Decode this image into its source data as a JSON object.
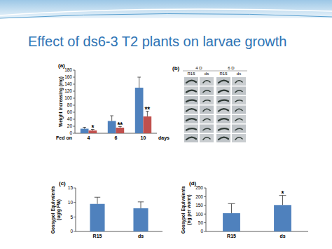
{
  "title": "Effect of ds6-3 T2 plants on larvae growth",
  "panel_b": {
    "label": "(b)",
    "days": [
      "4 D",
      "6 D"
    ],
    "lines": [
      "R15",
      "ds",
      "R15",
      "ds"
    ]
  },
  "chart_data": [
    {
      "type": "bar",
      "panel": "(a)",
      "y_label": "Weight increasing (mg)",
      "x_label_start": "Fed on",
      "x_label_end": "days",
      "categories": [
        "4",
        "6",
        "10"
      ],
      "ylim": [
        0,
        180
      ],
      "yticks": [
        0,
        20,
        40,
        60,
        80,
        100,
        120,
        140,
        160,
        180
      ],
      "series": [
        {
          "color": "#4f81bd",
          "values": [
            13,
            35,
            130
          ],
          "errors": [
            4,
            15,
            30
          ]
        },
        {
          "color": "#c0504d",
          "values": [
            8,
            16,
            48
          ],
          "errors": [
            3,
            3,
            15
          ],
          "annotations": [
            "*",
            "**",
            "**"
          ]
        }
      ]
    },
    {
      "type": "bar",
      "panel": "(c)",
      "y_label": [
        "Gossypol Equivalents",
        "(ug/g FW)"
      ],
      "categories": [
        "R15",
        "ds"
      ],
      "ylim": [
        0,
        15
      ],
      "yticks": [
        0,
        5,
        10,
        15
      ],
      "series": [
        {
          "color": "#4f81bd",
          "values": [
            9.5,
            8
          ],
          "errors": [
            2.3,
            2.2
          ]
        }
      ]
    },
    {
      "type": "bar",
      "panel": "(d)",
      "y_label": [
        "Gossypol Equivalents",
        "(ng per worm)"
      ],
      "categories": [
        "R15",
        "ds"
      ],
      "ylim": [
        0,
        250
      ],
      "yticks": [
        0,
        50,
        100,
        150,
        200,
        250
      ],
      "series": [
        {
          "color": "#4f81bd",
          "values": [
            105,
            152
          ],
          "errors": [
            55,
            55
          ],
          "annotations": [
            null,
            "*"
          ]
        }
      ]
    }
  ]
}
